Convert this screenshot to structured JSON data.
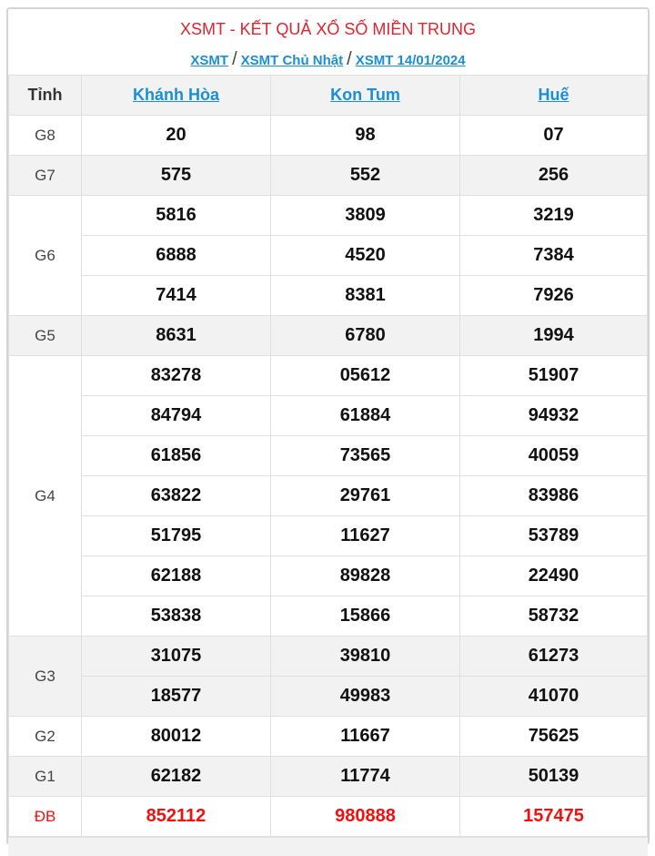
{
  "title": "XSMT - KẾT QUẢ XỔ SỐ MIỀN TRUNG",
  "breadcrumb": [
    "XSMT",
    "XSMT Chủ Nhật",
    "XSMT 14/01/2024"
  ],
  "breadcrumb_separator": "/",
  "header": {
    "label": "Tỉnh",
    "provinces": [
      "Khánh Hòa",
      "Kon Tum",
      "Huế"
    ]
  },
  "colors": {
    "title": "#e0242f",
    "link": "#1a8fd6",
    "special": "#f01010",
    "stripe": "#f2f2f2"
  },
  "prizes": [
    {
      "label": "G8",
      "rows": [
        [
          "20",
          "98",
          "07"
        ]
      ]
    },
    {
      "label": "G7",
      "rows": [
        [
          "575",
          "552",
          "256"
        ]
      ]
    },
    {
      "label": "G6",
      "rows": [
        [
          "5816",
          "3809",
          "3219"
        ],
        [
          "6888",
          "4520",
          "7384"
        ],
        [
          "7414",
          "8381",
          "7926"
        ]
      ]
    },
    {
      "label": "G5",
      "rows": [
        [
          "8631",
          "6780",
          "1994"
        ]
      ]
    },
    {
      "label": "G4",
      "rows": [
        [
          "83278",
          "05612",
          "51907"
        ],
        [
          "84794",
          "61884",
          "94932"
        ],
        [
          "61856",
          "73565",
          "40059"
        ],
        [
          "63822",
          "29761",
          "83986"
        ],
        [
          "51795",
          "11627",
          "53789"
        ],
        [
          "62188",
          "89828",
          "22490"
        ],
        [
          "53838",
          "15866",
          "58732"
        ]
      ]
    },
    {
      "label": "G3",
      "rows": [
        [
          "31075",
          "39810",
          "61273"
        ],
        [
          "18577",
          "49983",
          "41070"
        ]
      ]
    },
    {
      "label": "G2",
      "rows": [
        [
          "80012",
          "11667",
          "75625"
        ]
      ]
    },
    {
      "label": "G1",
      "rows": [
        [
          "62182",
          "11774",
          "50139"
        ]
      ]
    },
    {
      "label": "ĐB",
      "rows": [
        [
          "852112",
          "980888",
          "157475"
        ]
      ]
    }
  ]
}
